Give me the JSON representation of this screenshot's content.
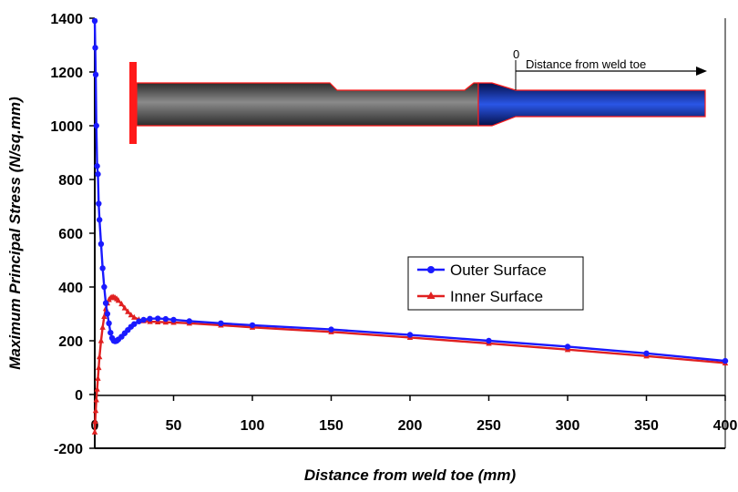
{
  "chart_data": {
    "type": "line",
    "title": "",
    "xlabel": "Distance from weld toe (mm)",
    "ylabel": "Maximum Principal Stress (N/sq.mm)",
    "xlim": [
      0,
      400
    ],
    "ylim": [
      -200,
      1400
    ],
    "x_ticks": [
      0,
      50,
      100,
      150,
      200,
      250,
      300,
      350,
      400
    ],
    "y_ticks": [
      -200,
      0,
      200,
      400,
      600,
      800,
      1000,
      1200,
      1400
    ],
    "grid": false,
    "legend_position": "center-right",
    "series": [
      {
        "name": "Outer Surface",
        "color": "#1a1aff",
        "marker": "circle",
        "x": [
          0,
          0.3,
          0.6,
          1,
          1.5,
          2,
          2.5,
          3,
          4,
          5,
          6,
          7,
          8,
          9,
          10,
          11,
          12,
          13,
          14,
          15,
          17,
          19,
          21,
          23,
          25,
          28,
          31,
          35,
          40,
          45,
          50,
          60,
          80,
          100,
          150,
          200,
          250,
          300,
          350,
          400
        ],
        "y": [
          1390,
          1290,
          1190,
          1000,
          850,
          820,
          710,
          650,
          560,
          470,
          400,
          340,
          300,
          265,
          230,
          210,
          200,
          198,
          200,
          205,
          215,
          228,
          240,
          252,
          262,
          272,
          278,
          282,
          283,
          281,
          278,
          273,
          265,
          258,
          242,
          222,
          200,
          178,
          153,
          125
        ]
      },
      {
        "name": "Inner Surface",
        "color": "#e02020",
        "marker": "triangle",
        "x": [
          0,
          0.3,
          0.6,
          1,
          1.5,
          2,
          2.5,
          3,
          4,
          5,
          6,
          7,
          8,
          9,
          10,
          11,
          12,
          13,
          14,
          15,
          17,
          19,
          21,
          23,
          25,
          28,
          31,
          35,
          40,
          45,
          50,
          60,
          80,
          100,
          150,
          200,
          250,
          300,
          350,
          400
        ],
        "y": [
          -140,
          -100,
          -60,
          -20,
          20,
          60,
          100,
          140,
          200,
          250,
          290,
          320,
          340,
          353,
          360,
          363,
          363,
          360,
          356,
          350,
          337,
          322,
          308,
          296,
          287,
          279,
          274,
          271,
          270,
          269,
          268,
          265,
          258,
          250,
          233,
          212,
          190,
          167,
          143,
          117
        ]
      }
    ],
    "annotations": [
      {
        "text": "0"
      },
      {
        "text": "Distance from weld toe"
      }
    ]
  },
  "colors": {
    "outer": "#1a1aff",
    "inner": "#e02020",
    "pipe_left": "#3a3a3a",
    "pipe_right": "#0a1a6e",
    "weld": "#ff1a1a"
  }
}
